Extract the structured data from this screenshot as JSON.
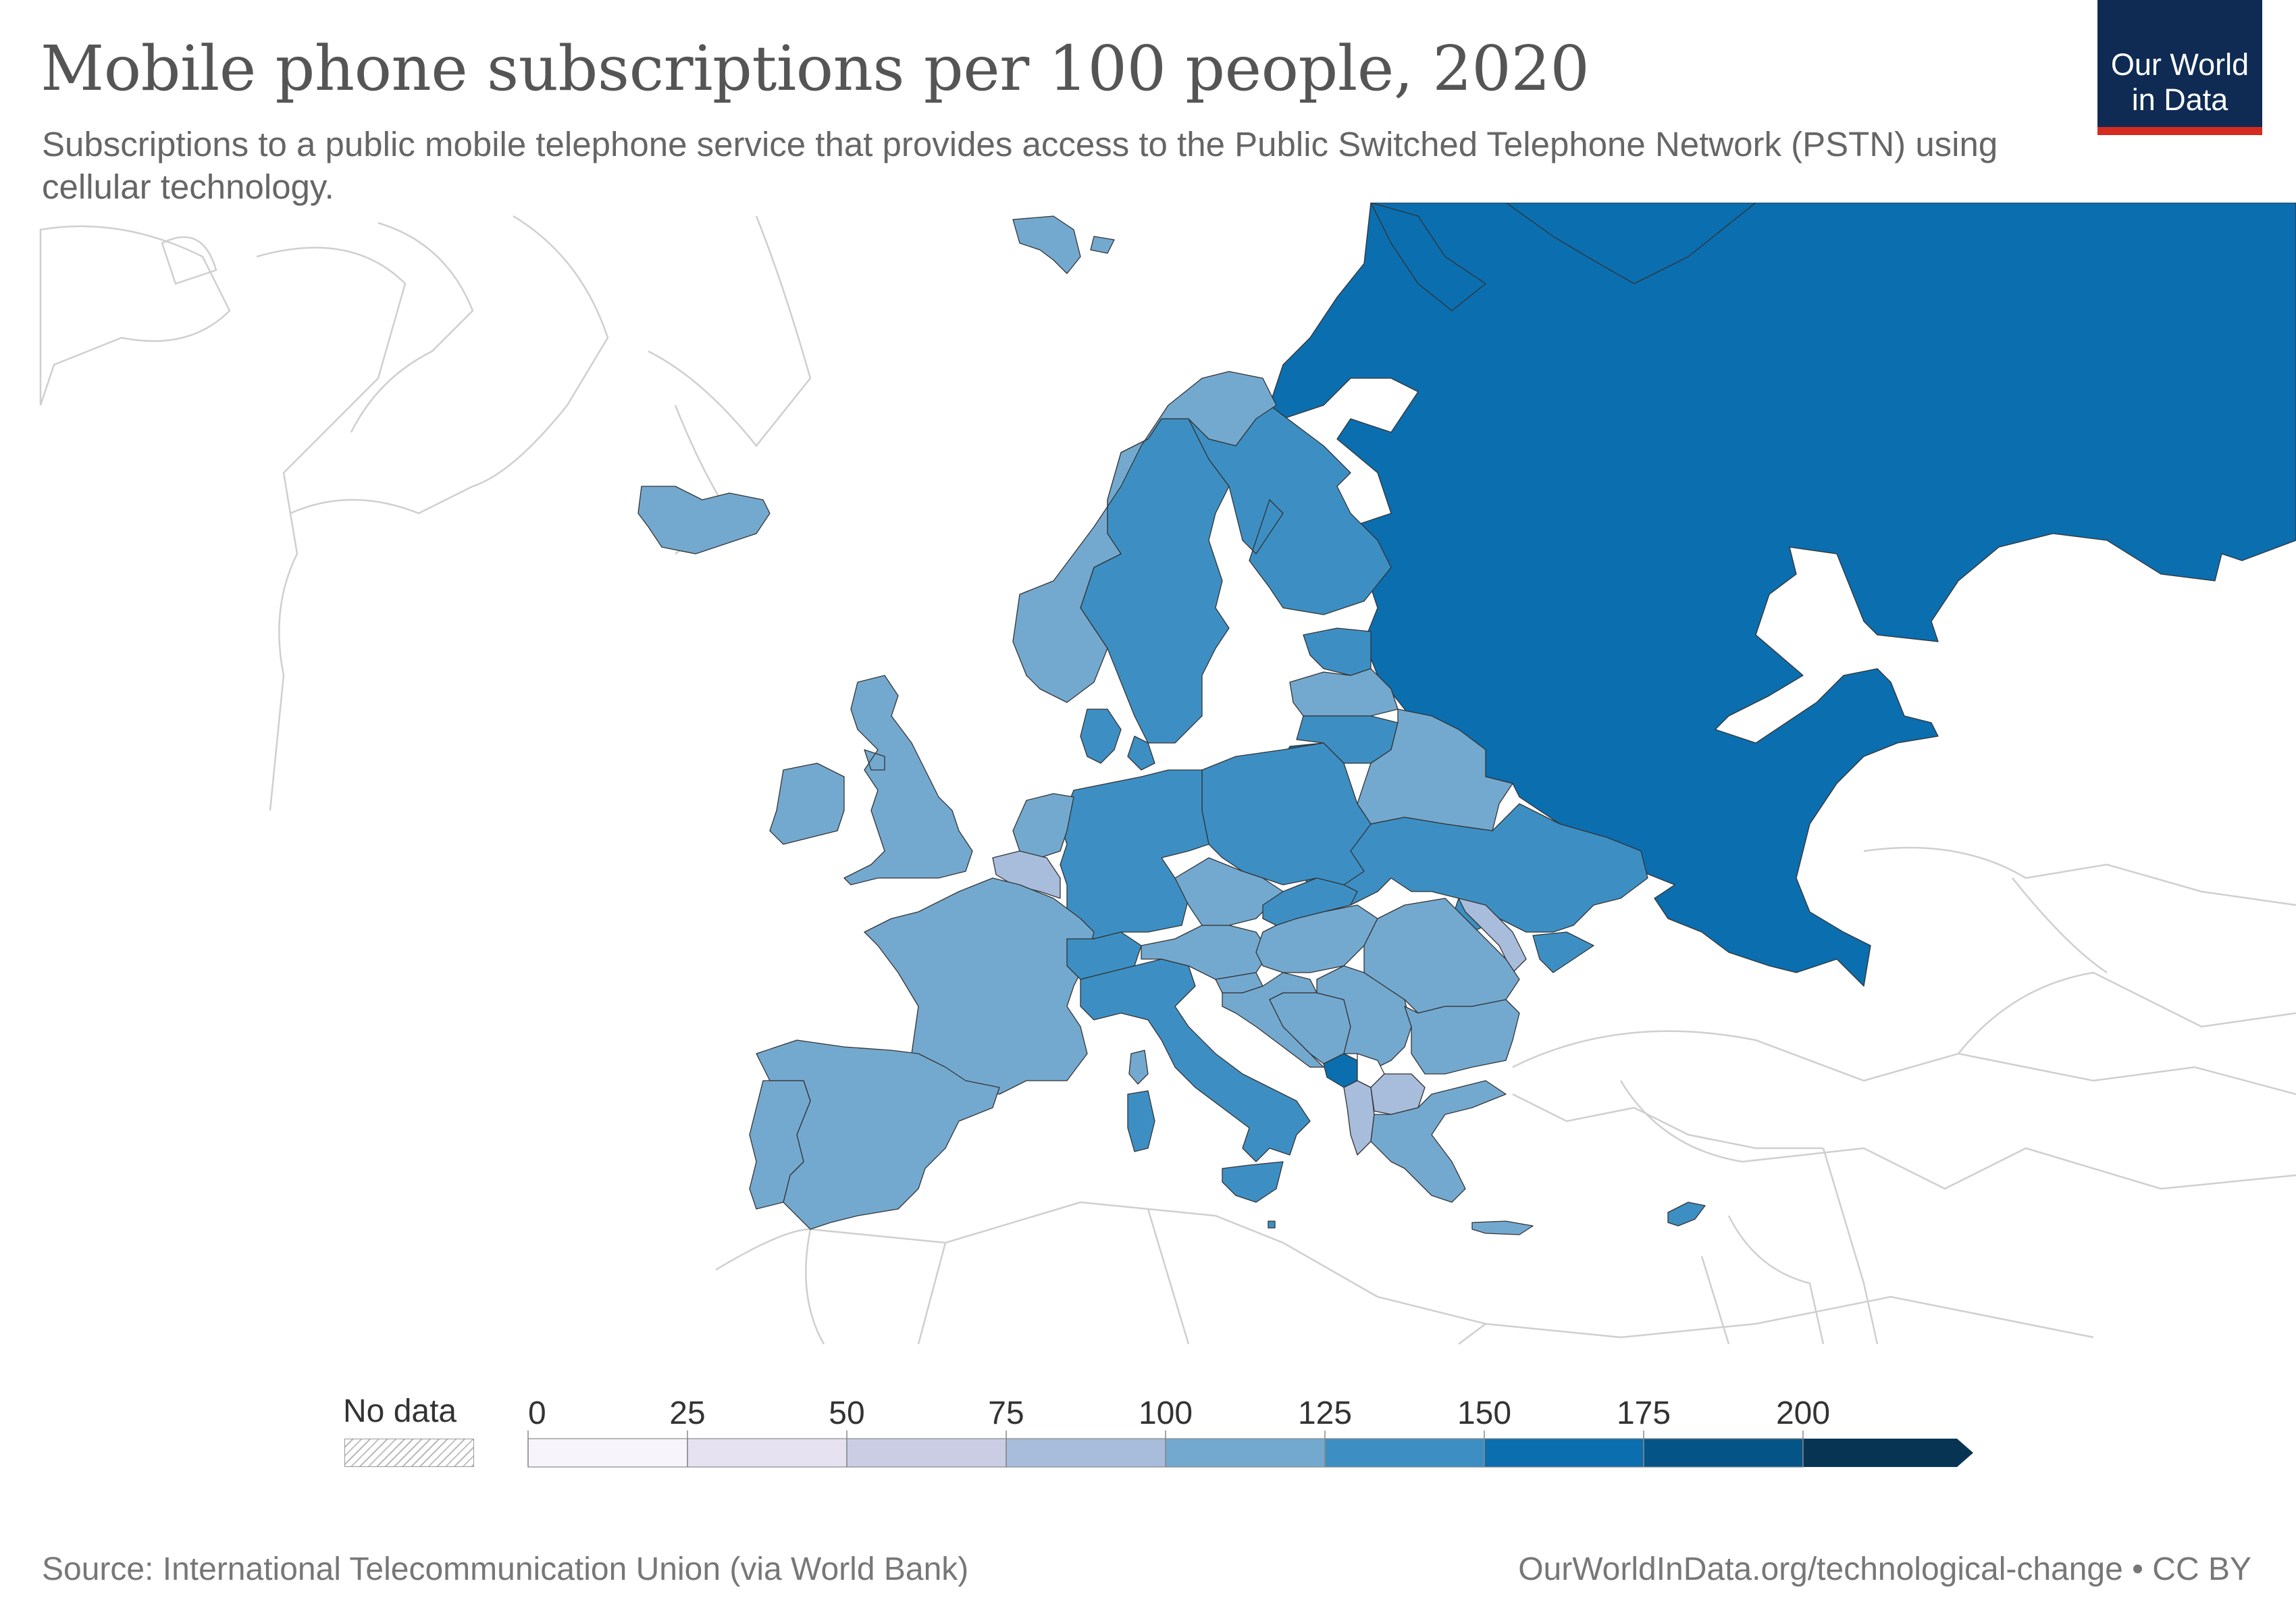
{
  "title": "Mobile phone subscriptions per 100 people, 2020",
  "subtitle": "Subscriptions to a public mobile telephone service that provides access to the Public Switched Telephone Network (PSTN) using cellular technology.",
  "logo": {
    "line1": "Our World",
    "line2": "in Data",
    "bg": "#0f2b54",
    "accent": "#d42b21"
  },
  "legend": {
    "no_data_label": "No data",
    "ticks": [
      "0",
      "25",
      "50",
      "75",
      "100",
      "125",
      "150",
      "175",
      "200"
    ],
    "bins": [
      {
        "from": 0,
        "to": 25,
        "color": "#f8f4fb"
      },
      {
        "from": 25,
        "to": 50,
        "color": "#e6e2f1"
      },
      {
        "from": 50,
        "to": 75,
        "color": "#cacde4"
      },
      {
        "from": 75,
        "to": 100,
        "color": "#a8bcdb"
      },
      {
        "from": 100,
        "to": 125,
        "color": "#74a9cf"
      },
      {
        "from": 125,
        "to": 150,
        "color": "#3d8fc3"
      },
      {
        "from": 150,
        "to": 175,
        "color": "#0b6eaf"
      },
      {
        "from": 175,
        "to": 200,
        "color": "#045488"
      },
      {
        "from": 200,
        "to": null,
        "color": "#083454"
      }
    ]
  },
  "map": {
    "region": "Europe",
    "year": 2020,
    "countries": [
      {
        "id": "russia",
        "bin": 6
      },
      {
        "id": "finland",
        "bin": 5
      },
      {
        "id": "sweden",
        "bin": 5
      },
      {
        "id": "norway",
        "bin": 4
      },
      {
        "id": "iceland",
        "bin": 4
      },
      {
        "id": "svalbard",
        "bin": 4
      },
      {
        "id": "estonia",
        "bin": 5
      },
      {
        "id": "latvia",
        "bin": 4
      },
      {
        "id": "lithuania",
        "bin": 5
      },
      {
        "id": "kaliningrad",
        "bin": 6
      },
      {
        "id": "belarus",
        "bin": 4
      },
      {
        "id": "ukraine",
        "bin": 5
      },
      {
        "id": "crimea",
        "bin": 5
      },
      {
        "id": "moldova",
        "bin": 3
      },
      {
        "id": "poland",
        "bin": 5
      },
      {
        "id": "germany",
        "bin": 5
      },
      {
        "id": "denmark",
        "bin": 5
      },
      {
        "id": "netherlands",
        "bin": 4
      },
      {
        "id": "belgium",
        "bin": 3
      },
      {
        "id": "united-kingdom",
        "bin": 4
      },
      {
        "id": "ireland",
        "bin": 4
      },
      {
        "id": "france",
        "bin": 4
      },
      {
        "id": "spain",
        "bin": 4
      },
      {
        "id": "portugal",
        "bin": 4
      },
      {
        "id": "switzerland",
        "bin": 5
      },
      {
        "id": "italy",
        "bin": 5
      },
      {
        "id": "sardinia",
        "bin": 5
      },
      {
        "id": "corsica",
        "bin": 4
      },
      {
        "id": "sicily",
        "bin": 5
      },
      {
        "id": "malta",
        "bin": 5
      },
      {
        "id": "austria",
        "bin": 4
      },
      {
        "id": "czechia",
        "bin": 4
      },
      {
        "id": "slovakia",
        "bin": 5
      },
      {
        "id": "hungary",
        "bin": 4
      },
      {
        "id": "slovenia",
        "bin": 4
      },
      {
        "id": "croatia",
        "bin": 4
      },
      {
        "id": "bosnia",
        "bin": 4
      },
      {
        "id": "serbia",
        "bin": 4
      },
      {
        "id": "montenegro",
        "bin": 6
      },
      {
        "id": "kosovo",
        "bin": null
      },
      {
        "id": "albania",
        "bin": 3
      },
      {
        "id": "north-macedonia",
        "bin": 3
      },
      {
        "id": "romania",
        "bin": 4
      },
      {
        "id": "bulgaria",
        "bin": 4
      },
      {
        "id": "greece",
        "bin": 4
      },
      {
        "id": "crete",
        "bin": 4
      },
      {
        "id": "cyprus",
        "bin": 5
      }
    ]
  },
  "source": "Source: International Telecommunication Union (via World Bank)",
  "site": "OurWorldInData.org/technological-change • CC BY"
}
